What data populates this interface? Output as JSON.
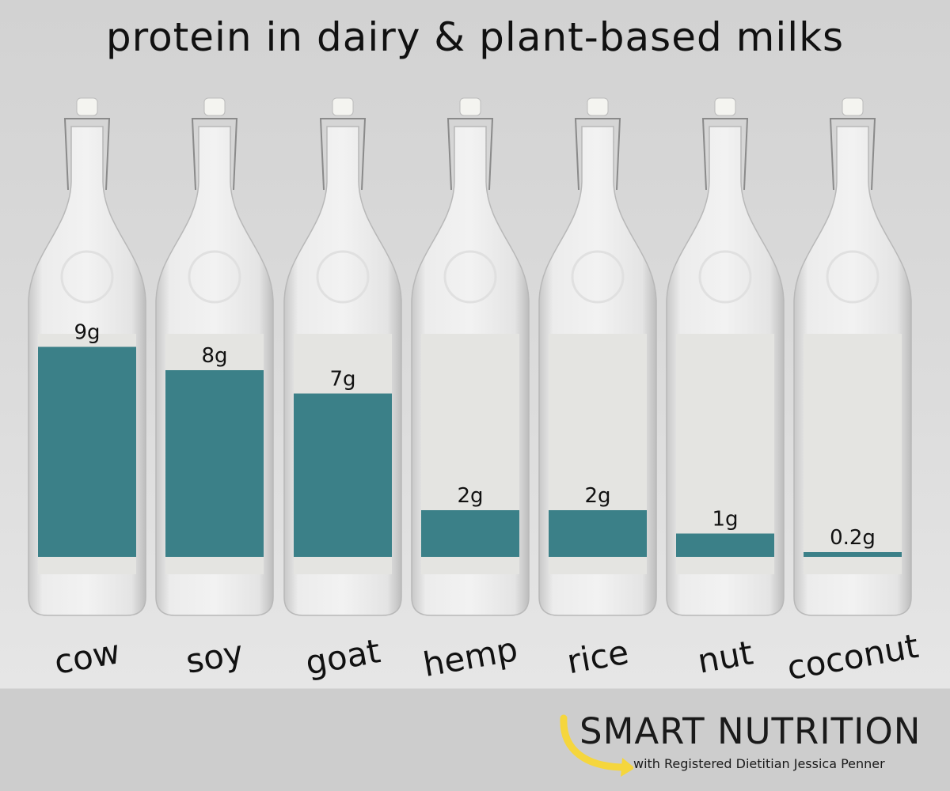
{
  "chart_data": {
    "type": "bar",
    "title": "protein in dairy & plant-based milks",
    "categories": [
      "cow",
      "soy",
      "goat",
      "hemp",
      "rice",
      "nut",
      "coconut"
    ],
    "values": [
      9,
      8,
      7,
      2,
      2,
      1,
      0.2
    ],
    "data_labels": [
      "9g",
      "8g",
      "7g",
      "2g",
      "2g",
      "1g",
      "0.2g"
    ],
    "unit": "g",
    "bar_color": "#3b8088",
    "grid": false,
    "legend": "none"
  },
  "logo": {
    "main": "SMART NUTRITION",
    "sub": "with Registered Dietitian Jessica Penner",
    "arrow_color": "#f5d63d"
  }
}
